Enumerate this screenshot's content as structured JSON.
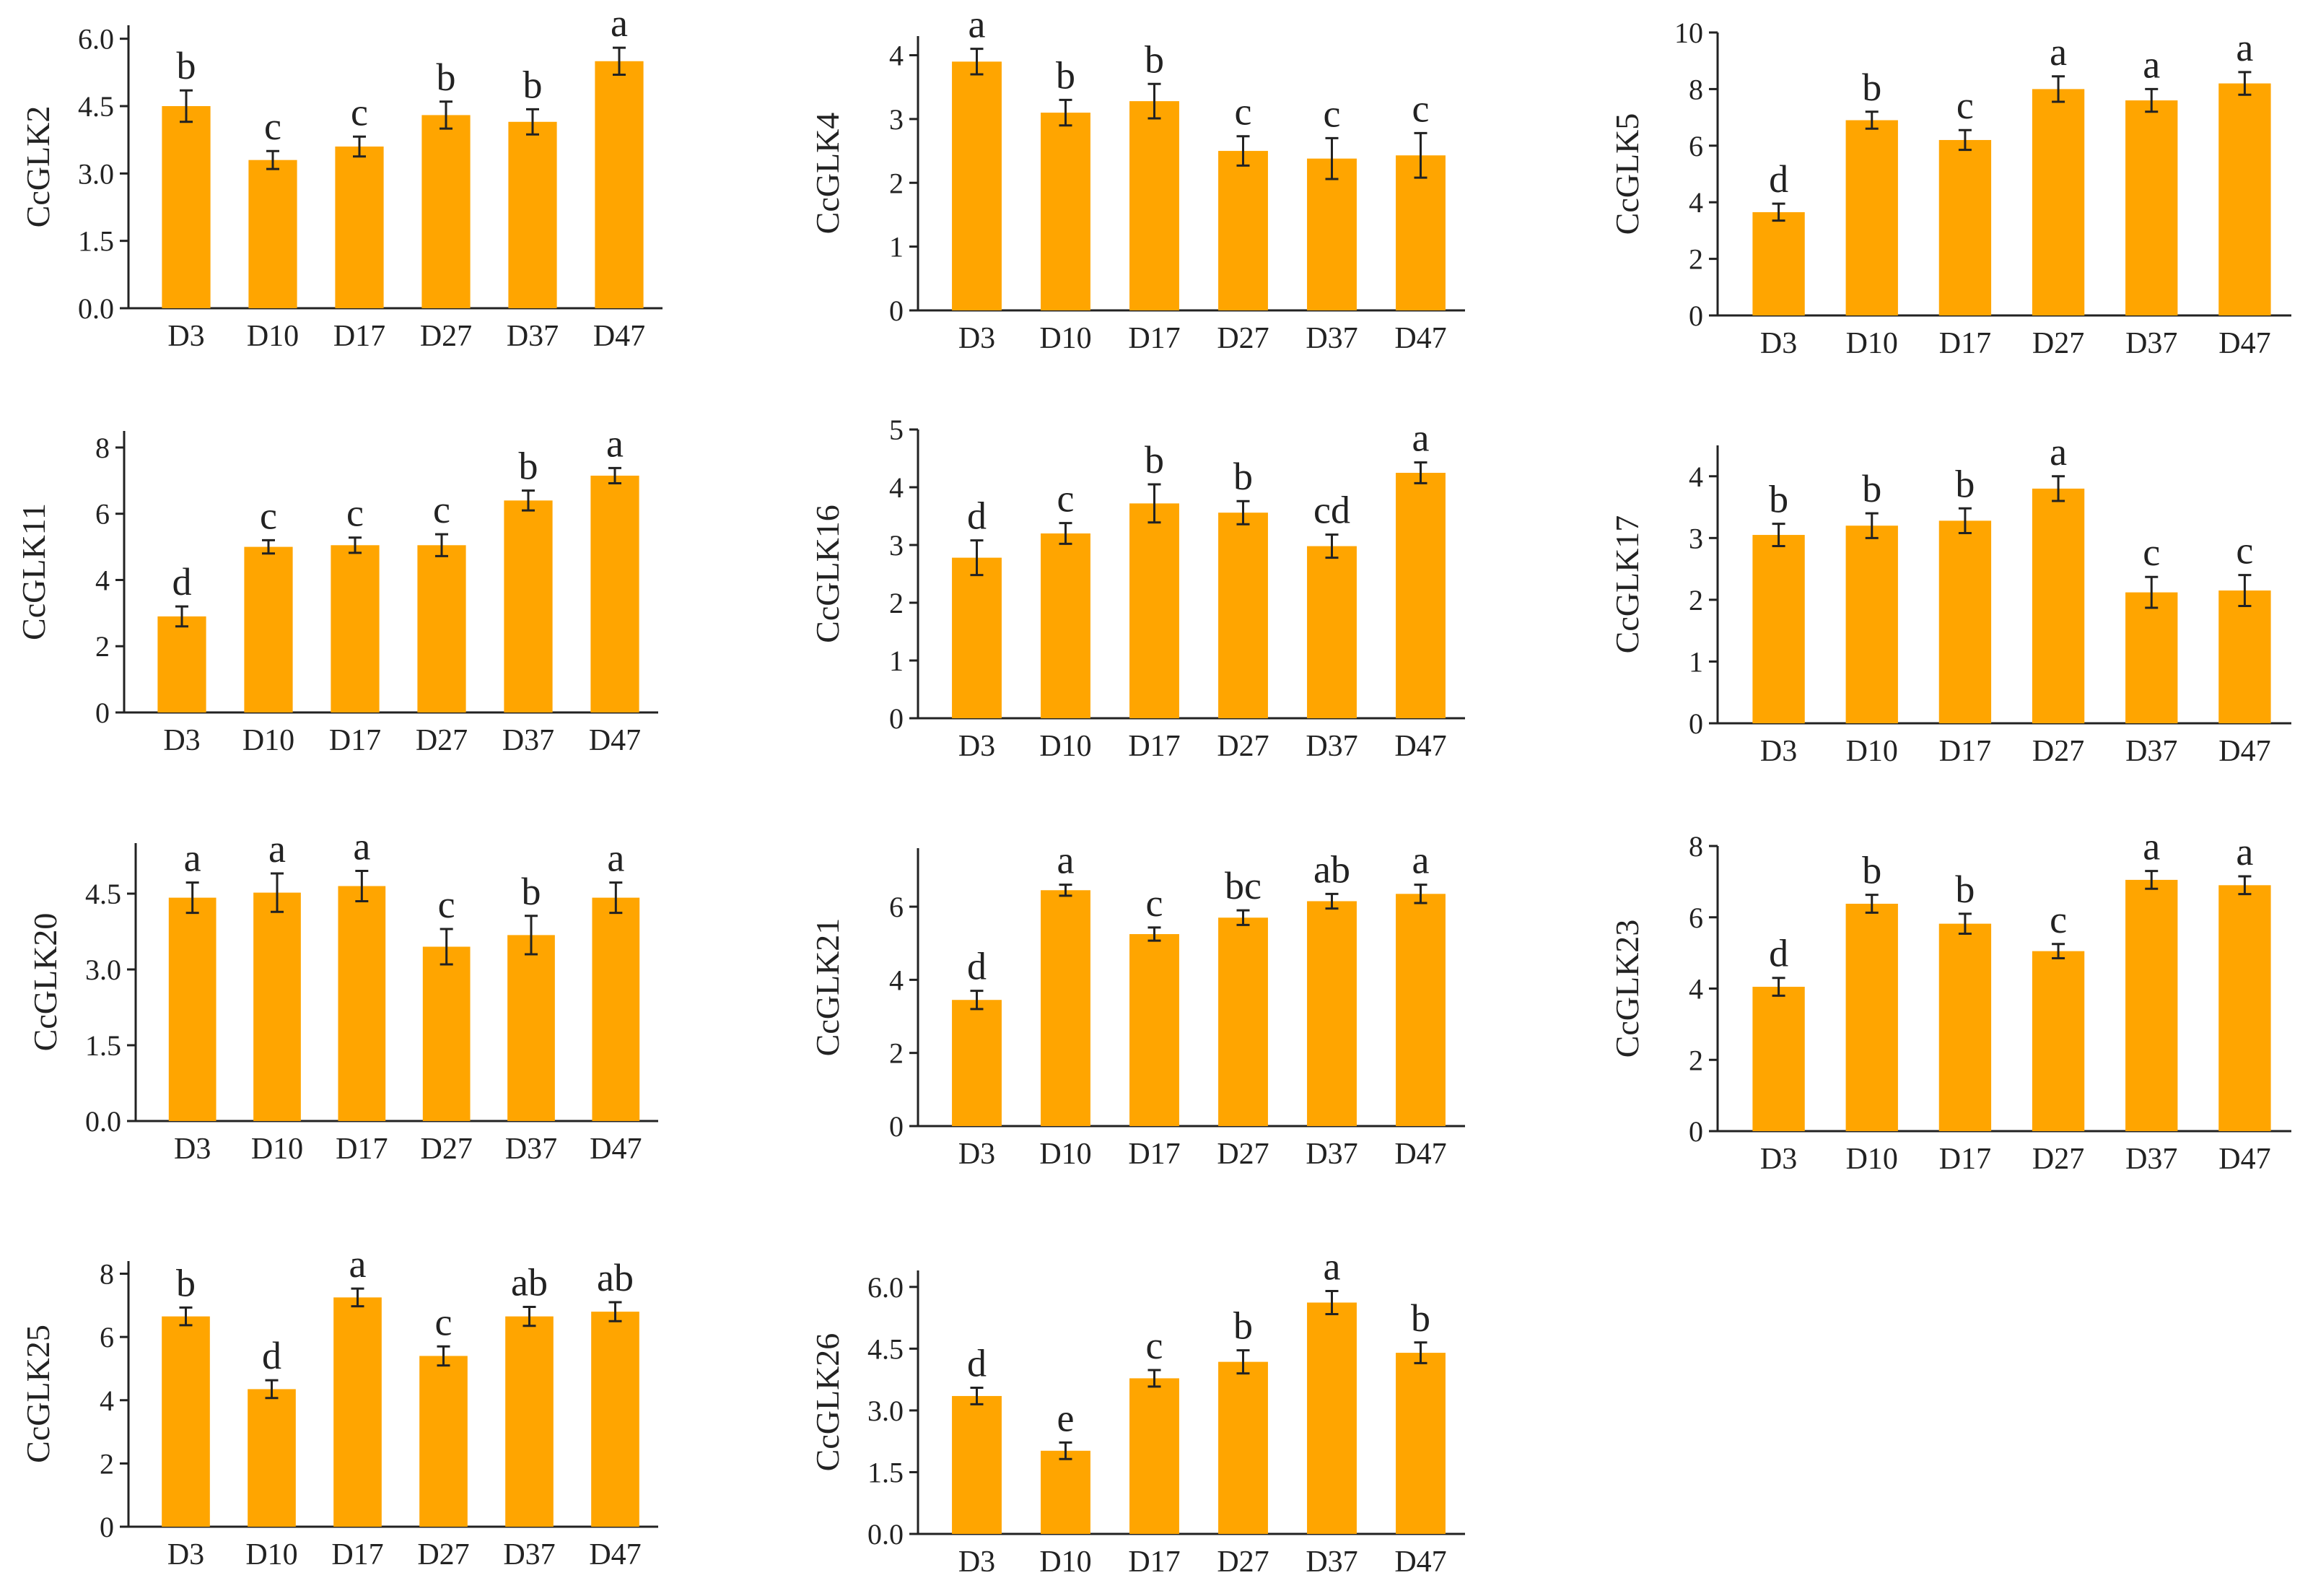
{
  "style": {
    "bar_color": "#FFA500",
    "axis_color": "#222222"
  },
  "chart_data": [
    {
      "type": "bar",
      "ylabel": "CcGLK2",
      "categories": [
        "D3",
        "D10",
        "D17",
        "D27",
        "D37",
        "D47"
      ],
      "values": [
        4.5,
        3.3,
        3.6,
        4.3,
        4.15,
        5.5
      ],
      "errors": [
        0.35,
        0.2,
        0.22,
        0.3,
        0.28,
        0.3
      ],
      "labels": [
        "b",
        "c",
        "c",
        "b",
        "b",
        "a"
      ],
      "ylim": [
        0,
        6.3
      ],
      "yticks": [
        0.0,
        1.5,
        3.0,
        4.5,
        6.0
      ],
      "decimals": 1
    },
    {
      "type": "bar",
      "ylabel": "CcGLK4",
      "categories": [
        "D3",
        "D10",
        "D17",
        "D27",
        "D37",
        "D47"
      ],
      "values": [
        3.9,
        3.1,
        3.28,
        2.5,
        2.38,
        2.43
      ],
      "errors": [
        0.2,
        0.2,
        0.27,
        0.23,
        0.32,
        0.35
      ],
      "labels": [
        "a",
        "b",
        "b",
        "c",
        "c",
        "c"
      ],
      "ylim": [
        0,
        4.3
      ],
      "yticks": [
        0,
        1,
        2,
        3,
        4
      ],
      "decimals": 0
    },
    {
      "type": "bar",
      "ylabel": "CcGLK5",
      "categories": [
        "D3",
        "D10",
        "D17",
        "D27",
        "D37",
        "D47"
      ],
      "values": [
        3.65,
        6.9,
        6.2,
        8.0,
        7.6,
        8.2
      ],
      "errors": [
        0.3,
        0.3,
        0.35,
        0.45,
        0.4,
        0.4
      ],
      "labels": [
        "d",
        "b",
        "c",
        "a",
        "a",
        "a"
      ],
      "ylim": [
        0,
        10
      ],
      "yticks": [
        0,
        2,
        4,
        6,
        8,
        10
      ],
      "decimals": 0
    },
    {
      "type": "bar",
      "ylabel": "CcGLK11",
      "categories": [
        "D3",
        "D10",
        "D17",
        "D27",
        "D37",
        "D47"
      ],
      "values": [
        2.9,
        5.0,
        5.05,
        5.05,
        6.4,
        7.15
      ],
      "errors": [
        0.3,
        0.2,
        0.23,
        0.33,
        0.3,
        0.23
      ],
      "labels": [
        "d",
        "c",
        "c",
        "c",
        "b",
        "a"
      ],
      "ylim": [
        0,
        8.5
      ],
      "yticks": [
        0,
        2,
        4,
        6,
        8
      ],
      "decimals": 0
    },
    {
      "type": "bar",
      "ylabel": "CcGLK16",
      "categories": [
        "D3",
        "D10",
        "D17",
        "D27",
        "D37",
        "D47"
      ],
      "values": [
        2.78,
        3.2,
        3.72,
        3.56,
        2.98,
        4.25
      ],
      "errors": [
        0.3,
        0.18,
        0.33,
        0.2,
        0.2,
        0.18
      ],
      "labels": [
        "d",
        "c",
        "b",
        "b",
        "cd",
        "a"
      ],
      "ylim": [
        0,
        5
      ],
      "yticks": [
        0,
        1,
        2,
        3,
        4,
        5
      ],
      "decimals": 0
    },
    {
      "type": "bar",
      "ylabel": "CcGLK17",
      "categories": [
        "D3",
        "D10",
        "D17",
        "D27",
        "D37",
        "D47"
      ],
      "values": [
        3.05,
        3.2,
        3.28,
        3.8,
        2.12,
        2.15
      ],
      "errors": [
        0.18,
        0.2,
        0.2,
        0.2,
        0.25,
        0.25
      ],
      "labels": [
        "b",
        "b",
        "b",
        "a",
        "c",
        "c"
      ],
      "ylim": [
        0,
        4.5
      ],
      "yticks": [
        0,
        1,
        2,
        3,
        4
      ],
      "decimals": 0
    },
    {
      "type": "bar",
      "ylabel": "CcGLK20",
      "categories": [
        "D3",
        "D10",
        "D17",
        "D27",
        "D37",
        "D47"
      ],
      "values": [
        4.42,
        4.52,
        4.65,
        3.45,
        3.68,
        4.42
      ],
      "errors": [
        0.3,
        0.38,
        0.3,
        0.35,
        0.38,
        0.3
      ],
      "labels": [
        "a",
        "a",
        "a",
        "c",
        "b",
        "a"
      ],
      "ylim": [
        0,
        5.5
      ],
      "yticks": [
        0.0,
        1.5,
        3.0,
        4.5
      ],
      "decimals": 1
    },
    {
      "type": "bar",
      "ylabel": "CcGLK21",
      "categories": [
        "D3",
        "D10",
        "D17",
        "D27",
        "D37",
        "D47"
      ],
      "values": [
        3.45,
        6.45,
        5.25,
        5.7,
        6.15,
        6.35
      ],
      "errors": [
        0.25,
        0.15,
        0.18,
        0.2,
        0.2,
        0.25
      ],
      "labels": [
        "d",
        "a",
        "c",
        "bc",
        "ab",
        "a"
      ],
      "ylim": [
        0,
        7.6
      ],
      "yticks": [
        0,
        2,
        4,
        6
      ],
      "decimals": 0
    },
    {
      "type": "bar",
      "ylabel": "CcGLK23",
      "categories": [
        "D3",
        "D10",
        "D17",
        "D27",
        "D37",
        "D47"
      ],
      "values": [
        4.05,
        6.38,
        5.82,
        5.05,
        7.05,
        6.9
      ],
      "errors": [
        0.25,
        0.25,
        0.28,
        0.2,
        0.25,
        0.25
      ],
      "labels": [
        "d",
        "b",
        "b",
        "c",
        "a",
        "a"
      ],
      "ylim": [
        0,
        8
      ],
      "yticks": [
        0,
        2,
        4,
        6,
        8
      ],
      "decimals": 0
    },
    {
      "type": "bar",
      "ylabel": "CcGLK25",
      "categories": [
        "D3",
        "D10",
        "D17",
        "D27",
        "D37",
        "D47"
      ],
      "values": [
        6.65,
        4.35,
        7.25,
        5.4,
        6.65,
        6.8
      ],
      "errors": [
        0.28,
        0.28,
        0.28,
        0.3,
        0.3,
        0.3
      ],
      "labels": [
        "b",
        "d",
        "a",
        "c",
        "ab",
        "ab"
      ],
      "ylim": [
        0,
        8.4
      ],
      "yticks": [
        0,
        2,
        4,
        6,
        8
      ],
      "decimals": 0
    },
    {
      "type": "bar",
      "ylabel": "CcGLK26",
      "categories": [
        "D3",
        "D10",
        "D17",
        "D27",
        "D37",
        "D47"
      ],
      "values": [
        3.35,
        2.02,
        3.78,
        4.18,
        5.62,
        4.4
      ],
      "errors": [
        0.2,
        0.2,
        0.2,
        0.28,
        0.28,
        0.25
      ],
      "labels": [
        "d",
        "e",
        "c",
        "b",
        "a",
        "b"
      ],
      "ylim": [
        0,
        6.4
      ],
      "yticks": [
        0.0,
        1.5,
        3.0,
        4.5,
        6.0
      ],
      "decimals": 1
    }
  ]
}
